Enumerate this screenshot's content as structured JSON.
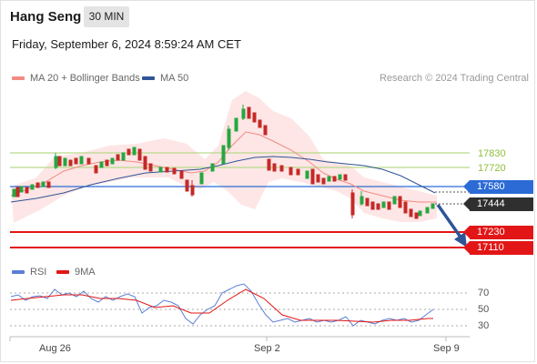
{
  "header": {
    "instrument": "Hang Seng",
    "timeframe": "30 MIN",
    "datetime": "Friday, September 6, 2024 8:59:24 AM CET"
  },
  "legend": [
    {
      "label": "MA 20 + Bollinger Bands",
      "color": "#f28b82"
    },
    {
      "label": "MA 50",
      "color": "#2f5597"
    }
  ],
  "credit": "Research © 2024 Trading Central",
  "levels": {
    "resistance": [
      "17830",
      "17720"
    ],
    "pivot": "17580",
    "last_price": "17444",
    "support": [
      "17230",
      "17110"
    ]
  },
  "rsi_legend": [
    {
      "label": "RSI",
      "color": "#5a7fd6"
    },
    {
      "label": "9MA",
      "color": "#e21616"
    }
  ],
  "rsi_ticks": [
    "70",
    "50",
    "30"
  ],
  "x_labels": [
    "Aug 26",
    "Sep 2",
    "Sep 9"
  ],
  "colors": {
    "up": "#26a641",
    "down": "#c62828",
    "band": "#fde2e0",
    "pivot": "#2c6bd6",
    "support": "#e21616",
    "resistance": "#b9d98a"
  }
}
